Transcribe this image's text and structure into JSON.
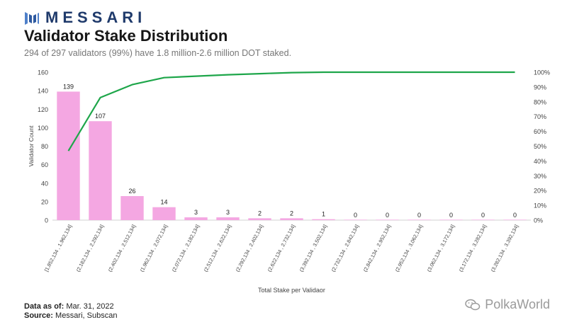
{
  "brand": {
    "name": "MESSARI"
  },
  "title": "Validator Stake Distribution",
  "subtitle": "294 of 297 validators (99%) have 1.8 million-2.6 million DOT staked.",
  "footer": {
    "data_label": "Data as of",
    "data_value": "Mar. 31, 2022",
    "source_label": "Source",
    "source_value": "Messari, Subscan"
  },
  "watermark": "PolkaWorld",
  "colors": {
    "bar": "#f4a7e2",
    "line": "#1ea64a",
    "brand": "#1f3a6b"
  },
  "chart_data": {
    "type": "bar",
    "xlabel": "Total Stake per Validaor",
    "ylabel": "Validator Count",
    "ylim": [
      0,
      160
    ],
    "y_ticks": [
      0,
      20,
      40,
      60,
      80,
      100,
      120,
      140,
      160
    ],
    "y2lim": [
      0,
      100
    ],
    "y2_ticks": [
      "0%",
      "10%",
      "20%",
      "30%",
      "40%",
      "50%",
      "60%",
      "70%",
      "80%",
      "90%",
      "100%"
    ],
    "categories": [
      "[1,852,134 , 1,962,134]",
      "(2,182,134 , 2,292,134]",
      "(2,402,134 , 2,512,134]",
      "(1,962,134 , 2,072,134]",
      "(2,072,134 , 2,182,134]",
      "(2,512,134 , 2,622,134]",
      "(2,292,134 , 2,402,134]",
      "(2,622,134 , 2,732,134]",
      "(3,392,134 , 3,502,134]",
      "(2,732,134 , 2,842,134]",
      "(2,842,134 , 2,952,134]",
      "(2,952,134 , 3,062,134]",
      "(3,062,134 , 3,172,134]",
      "(3,172,134 , 3,282,134]",
      "(3,282,134 , 3,392,134]"
    ],
    "series": [
      {
        "type": "bar",
        "values": [
          139,
          107,
          26,
          14,
          3,
          3,
          2,
          2,
          1,
          0,
          0,
          0,
          0,
          0,
          0
        ]
      },
      {
        "type": "line",
        "axis": "right",
        "values": [
          46.8,
          82.8,
          91.6,
          96.3,
          97.3,
          98.3,
          99.0,
          99.7,
          100,
          100,
          100,
          100,
          100,
          100,
          100
        ]
      }
    ],
    "grid": false,
    "data_labels": true
  }
}
